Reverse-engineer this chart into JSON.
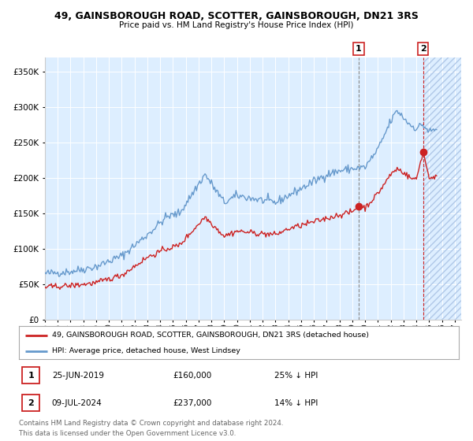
{
  "title": "49, GAINSBOROUGH ROAD, SCOTTER, GAINSBOROUGH, DN21 3RS",
  "subtitle": "Price paid vs. HM Land Registry's House Price Index (HPI)",
  "legend_label_red": "49, GAINSBOROUGH ROAD, SCOTTER, GAINSBOROUGH, DN21 3RS (detached house)",
  "legend_label_blue": "HPI: Average price, detached house, West Lindsey",
  "annotation1_date": "25-JUN-2019",
  "annotation1_price": "£160,000",
  "annotation1_hpi": "25% ↓ HPI",
  "annotation1_year": 2019.49,
  "annotation1_value": 160000,
  "annotation2_date": "09-JUL-2024",
  "annotation2_price": "£237,000",
  "annotation2_hpi": "14% ↓ HPI",
  "annotation2_year": 2024.52,
  "annotation2_value": 237000,
  "footer": "Contains HM Land Registry data © Crown copyright and database right 2024.\nThis data is licensed under the Open Government Licence v3.0.",
  "ylim": [
    0,
    370000
  ],
  "xlim_start": 1995.0,
  "xlim_end": 2027.5,
  "hpi_color": "#6699cc",
  "price_color": "#cc2222",
  "bg_color": "#ddeeff",
  "hatch_color": "#aabbdd",
  "vline1_color": "#888888",
  "vline2_color": "#cc2222"
}
